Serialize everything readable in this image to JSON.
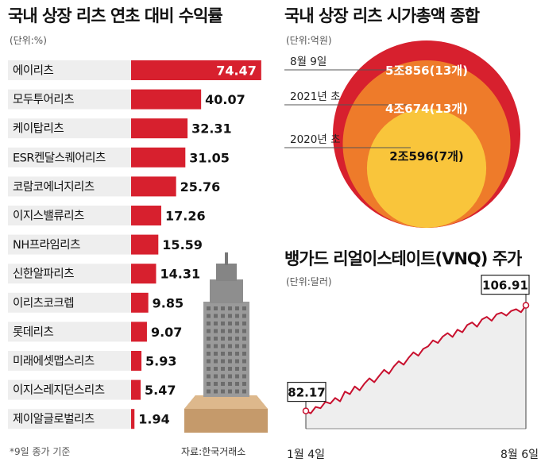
{
  "chart_data": [
    {
      "type": "bar",
      "orientation": "horizontal",
      "title": "국내 상장 리츠 연초 대비 수익률",
      "unit": "(단위:%)",
      "categories": [
        "에이리츠",
        "모두투어리츠",
        "케이탑리츠",
        "ESR켄달스퀘어리츠",
        "코람코에너지리츠",
        "이지스밸류리츠",
        "NH프라임리츠",
        "신한알파리츠",
        "이리츠코크렙",
        "롯데리츠",
        "미래에셋맵스리츠",
        "이지스레지던스리츠",
        "제이알글로벌리츠"
      ],
      "values": [
        74.47,
        40.07,
        32.31,
        31.05,
        25.76,
        17.26,
        15.59,
        14.31,
        9.85,
        9.07,
        5.93,
        5.47,
        1.94
      ],
      "value_labels": [
        "74.47",
        "40.07",
        "32.31",
        "31.05",
        "25.76",
        "17.26",
        "15.59",
        "14.31",
        "9.85",
        "9.07",
        "5.93",
        "5.47",
        "1.94"
      ],
      "footnote": "*9일 종가 기준",
      "source": "자료:한국거래소",
      "colors": {
        "bar": "#d7202e",
        "row_bg": "#eeeeee"
      }
    },
    {
      "type": "bubble",
      "title": "국내 상장 리츠 시가총액 종합",
      "unit": "(단위:억원)",
      "items": [
        {
          "period": "8월 9일",
          "label": "5조856(13개)",
          "value": 50856,
          "count": 13,
          "color": "#d7202e"
        },
        {
          "period": "2021년 초",
          "label": "4조674(13개)",
          "value": 40674,
          "count": 13,
          "color": "#ee7b2a"
        },
        {
          "period": "2020년 초",
          "label": "2조596(7개)",
          "value": 20596,
          "count": 7,
          "color": "#f9c53b"
        }
      ]
    },
    {
      "type": "line",
      "title": "뱅가드 리얼이스테이트(VNQ) 주가",
      "unit": "(단위:달러)",
      "x_labels": [
        "1월 4일",
        "8월 6일"
      ],
      "start": {
        "label": "82.17",
        "value": 82.17
      },
      "end": {
        "label": "106.91",
        "value": 106.91
      },
      "ylim": [
        78,
        110
      ],
      "series": [
        {
          "values": [
            82.17,
            81.6,
            83.1,
            82.8,
            84.3,
            83.9,
            85.2,
            84.4,
            86.7,
            86.1,
            87.9,
            87.0,
            88.6,
            89.8,
            88.9,
            90.4,
            91.8,
            90.9,
            92.6,
            93.8,
            93.0,
            94.6,
            95.9,
            95.1,
            96.7,
            97.3,
            98.7,
            98.1,
            99.6,
            100.4,
            99.5,
            101.2,
            100.6,
            102.3,
            102.9,
            101.9,
            103.6,
            104.2,
            103.3,
            104.8,
            105.2,
            104.5,
            105.6,
            106.0,
            105.3,
            106.91
          ]
        }
      ],
      "colors": {
        "line": "#c8102e",
        "area": "#eeeeee"
      }
    }
  ]
}
